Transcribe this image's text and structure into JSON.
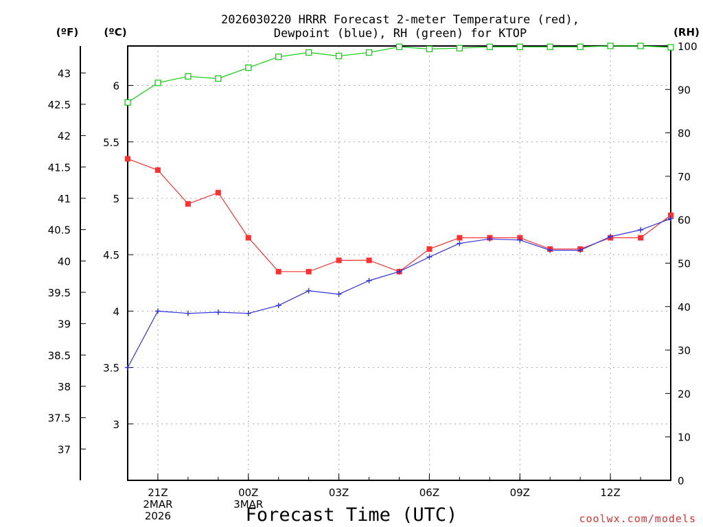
{
  "chart_data": {
    "type": "line",
    "title": "2026030220 HRRR Forecast 2-meter Temperature (red),",
    "title_line2": "Dewpoint (blue), RH (green) for KTOP",
    "xlabel": "Forecast Time (UTC)",
    "credit": "coolwx.com/models",
    "units": {
      "fahrenheit": "(ºF)",
      "celsius": "(ºC)",
      "rh": "(RH)"
    },
    "x_hours": [
      20,
      21,
      22,
      23,
      24,
      25,
      26,
      27,
      28,
      29,
      30,
      31,
      32,
      33,
      34,
      35,
      36,
      37,
      38
    ],
    "xlim": [
      20,
      38
    ],
    "x_ticks": [
      {
        "hour": 21,
        "lines": [
          "21Z",
          "2MAR",
          "2026"
        ]
      },
      {
        "hour": 24,
        "lines": [
          "00Z",
          "3MAR"
        ]
      },
      {
        "hour": 27,
        "lines": [
          "03Z"
        ]
      },
      {
        "hour": 30,
        "lines": [
          "06Z"
        ]
      },
      {
        "hour": 33,
        "lines": [
          "09Z"
        ]
      },
      {
        "hour": 36,
        "lines": [
          "12Z"
        ]
      }
    ],
    "celsius_axis": {
      "range": [
        2.5,
        6.35
      ],
      "ticks": [
        3,
        3.5,
        4,
        4.5,
        5,
        5.5,
        6
      ],
      "tick_labels": [
        "3",
        "3.5",
        "4",
        "4.5",
        "5",
        "5.5",
        "6"
      ]
    },
    "fahrenheit_ticks": [
      37,
      37.5,
      38,
      38.5,
      39,
      39.5,
      40,
      40.5,
      41,
      41.5,
      42,
      42.5,
      43
    ],
    "fahrenheit_tick_labels": [
      "37",
      "37.5",
      "38",
      "38.5",
      "39",
      "39.5",
      "40",
      "40.5",
      "41",
      "41.5",
      "42",
      "42.5",
      "43"
    ],
    "rh_axis": {
      "range": [
        0,
        100
      ],
      "ticks": [
        0,
        10,
        20,
        30,
        40,
        50,
        60,
        70,
        80,
        90,
        100
      ],
      "tick_labels": [
        "0",
        "10",
        "20",
        "30",
        "40",
        "50",
        "60",
        "70",
        "80",
        "90",
        "100"
      ]
    },
    "series": [
      {
        "name": "Temperature",
        "axis": "celsius",
        "color": "#ff3030",
        "marker": "filled-square",
        "values": [
          5.35,
          5.25,
          4.95,
          5.05,
          4.65,
          4.35,
          4.35,
          4.45,
          4.45,
          4.35,
          4.55,
          4.65,
          4.65,
          4.65,
          4.55,
          4.55,
          4.65,
          4.65,
          4.85
        ]
      },
      {
        "name": "Dewpoint",
        "axis": "celsius",
        "color": "#3030e0",
        "marker": "plus",
        "values": [
          3.5,
          4.0,
          3.98,
          3.99,
          3.98,
          4.05,
          4.18,
          4.15,
          4.27,
          4.35,
          4.48,
          4.6,
          4.64,
          4.63,
          4.54,
          4.54,
          4.66,
          4.72,
          4.82
        ]
      },
      {
        "name": "RH",
        "axis": "rh",
        "color": "#10d010",
        "marker": "open-square",
        "values": [
          87,
          91.5,
          93,
          92.5,
          95,
          97.5,
          98.5,
          97.7,
          98.5,
          99.8,
          99.3,
          99.5,
          99.8,
          99.8,
          99.8,
          99.8,
          100,
          100,
          99.7
        ]
      }
    ]
  }
}
